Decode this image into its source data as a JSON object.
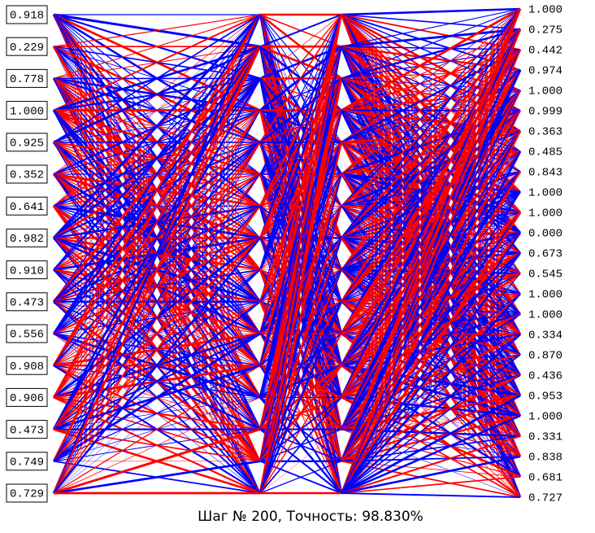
{
  "inputs": [
    "0.918",
    "0.229",
    "0.778",
    "1.000",
    "0.925",
    "0.352",
    "0.641",
    "0.982",
    "0.910",
    "0.473",
    "0.556",
    "0.908",
    "0.906",
    "0.473",
    "0.749",
    "0.729"
  ],
  "outputs": [
    "1.000",
    "0.275",
    "0.442",
    "0.974",
    "1.000",
    "0.999",
    "0.363",
    "0.485",
    "0.843",
    "1.000",
    "1.000",
    "0.000",
    "0.673",
    "0.545",
    "1.000",
    "1.000",
    "0.334",
    "0.870",
    "0.436",
    "0.953",
    "1.000",
    "0.331",
    "0.838",
    "0.681",
    "0.727"
  ],
  "status": "Шаг № 200, Точность: 98.830%"
}
